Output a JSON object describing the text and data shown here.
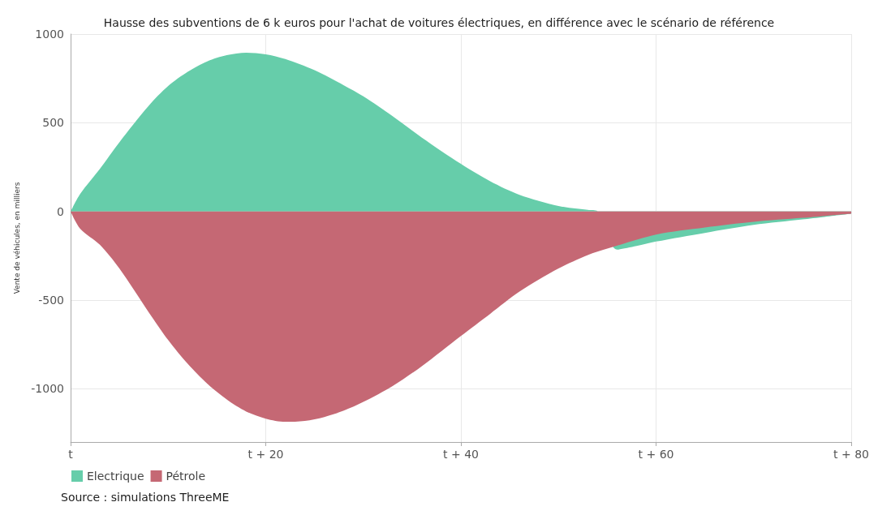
{
  "chart_data": {
    "type": "area",
    "title": "Hausse des subventions de 6 k euros pour l'achat de voitures électriques, en différence avec le scénario de référence",
    "ylabel": "Vente de véhicules, en milliers",
    "annotations": [
      "Source : simulations ThreeME"
    ],
    "xlim": [
      0,
      80
    ],
    "xticks": [
      {
        "value": 0,
        "label": "t"
      },
      {
        "value": 20,
        "label": "t + 20"
      },
      {
        "value": 40,
        "label": "t + 40"
      },
      {
        "value": 60,
        "label": "t + 60"
      },
      {
        "value": 80,
        "label": "t + 80"
      }
    ],
    "ylim": [
      -1300,
      1000
    ],
    "yticks": [
      -1000,
      -500,
      0,
      500,
      1000
    ],
    "grid": true,
    "legend": "bottom left",
    "series": [
      {
        "name": "Electrique",
        "color": "#66cdaa",
        "x": [
          0,
          1,
          3,
          5,
          8,
          10,
          12,
          14,
          16,
          18,
          20,
          22,
          25,
          28,
          30,
          33,
          36,
          40,
          43,
          46,
          50,
          53,
          54,
          56,
          58,
          60,
          65,
          70,
          75,
          80
        ],
        "values": [
          0,
          100,
          240,
          390,
          595,
          707,
          787,
          846,
          881,
          895,
          886,
          859,
          796,
          711,
          649,
          537,
          416,
          268,
          170,
          94,
          31,
          9,
          2,
          -215,
          -195,
          -170,
          -121,
          -76,
          -45,
          -13
        ]
      },
      {
        "name": "Pétrole",
        "color": "#c56874",
        "x": [
          0,
          1,
          3,
          5,
          8,
          10,
          12,
          14,
          16,
          18,
          20,
          22,
          24,
          26,
          28,
          30,
          33,
          36,
          40,
          43,
          46,
          50,
          53,
          55,
          60,
          65,
          70,
          75,
          80
        ],
        "values": [
          0,
          -98,
          -188,
          -322,
          -568,
          -725,
          -859,
          -971,
          -1060,
          -1128,
          -1168,
          -1186,
          -1181,
          -1159,
          -1123,
          -1074,
          -984,
          -872,
          -702,
          -577,
          -452,
          -322,
          -246,
          -210,
          -130,
          -90,
          -58,
          -36,
          -13
        ]
      }
    ]
  }
}
